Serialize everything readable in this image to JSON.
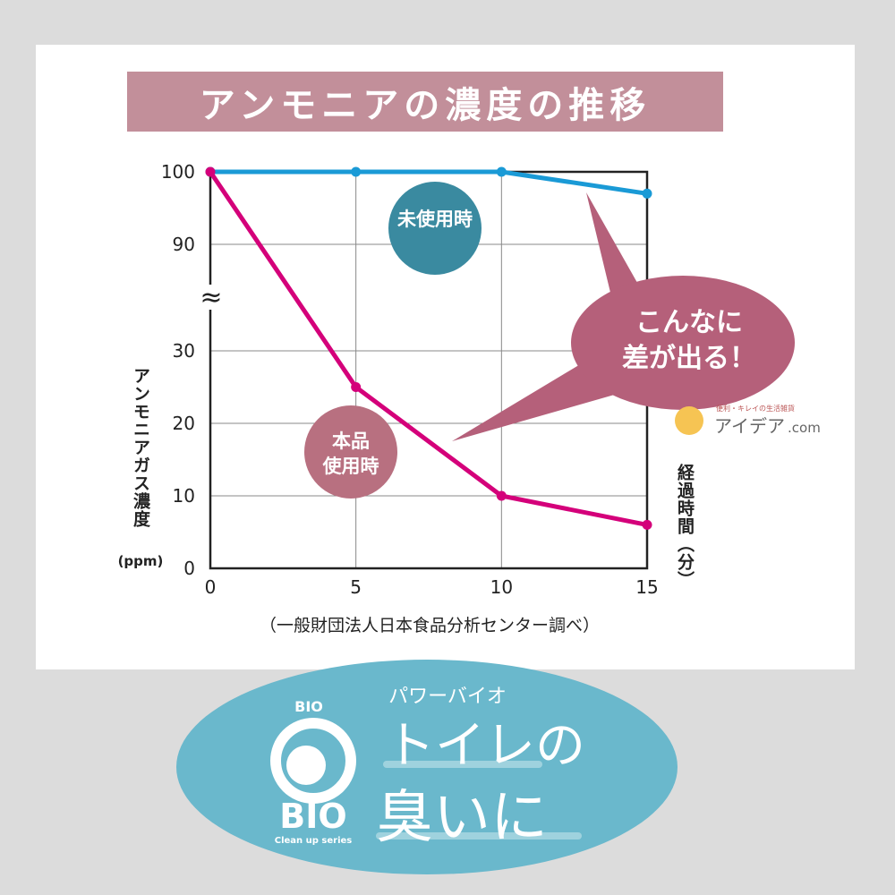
{
  "chart_data": {
    "type": "line",
    "title": "アンモニアの濃度の推移",
    "ylabel": "アンモニアガス濃度（ppm）",
    "xlabel": "経過時間（分）",
    "x": [
      0,
      5,
      10,
      15
    ],
    "xticks": [
      "0",
      "5",
      "10",
      "15"
    ],
    "yticks": [
      "0",
      "10",
      "20",
      "30",
      "90",
      "100"
    ],
    "ylim": [
      0,
      100
    ],
    "axis_break": [
      30,
      90
    ],
    "grid": true,
    "series": [
      {
        "name": "未使用時",
        "values": [
          100,
          100,
          100,
          97
        ],
        "color": "#1a9ad6"
      },
      {
        "name": "本品使用時",
        "values": [
          100,
          25,
          10,
          6
        ],
        "color": "#d4007a"
      }
    ],
    "annotation": "こんなに差が出る！",
    "source": "（一般財団法人日本食品分析センター調べ）"
  },
  "labels": {
    "unused_line1": "未使用時",
    "used_line1": "本品",
    "used_line2": "使用時",
    "callout_line1": "こんなに",
    "callout_line2": "差が出る！",
    "ylabel_main": "アンモニアガス濃度",
    "ylabel_unit": "(ppm)",
    "xlabel_main": "経過時間",
    "xlabel_unit": "(分)"
  },
  "brand": {
    "tagline": "便利・キレイの生活雑貨",
    "name": "アイデア",
    "suffix": ".com"
  },
  "banner": {
    "kana": "パワーバイオ",
    "line1": "トイレの",
    "line2": "臭いに",
    "logo": "BIO",
    "series": "Clean up series"
  },
  "colors": {
    "title_bg": "#c28f9a",
    "unused": "#3a8aa0",
    "used": "#b87080",
    "callout": "#b5607a",
    "banner": "#6ab8cc"
  }
}
